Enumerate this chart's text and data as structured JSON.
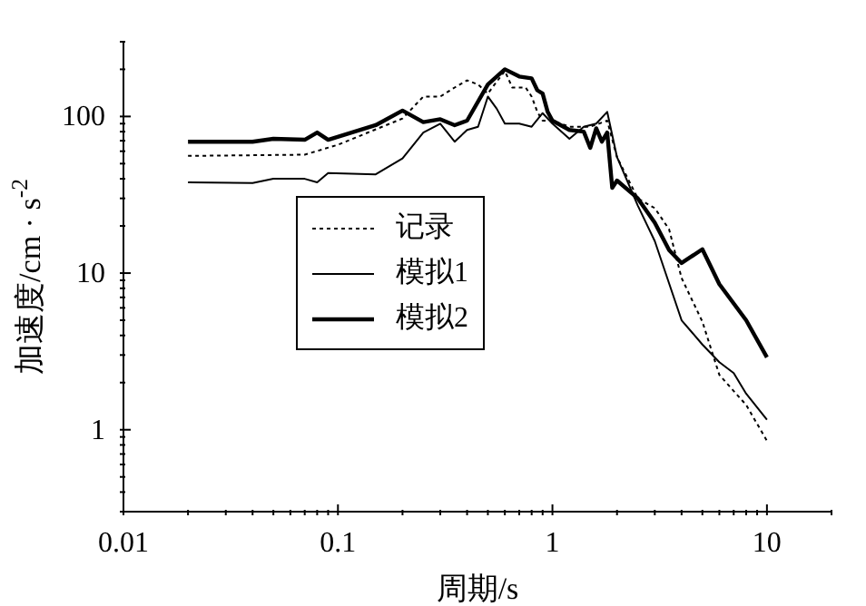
{
  "chart_data": {
    "type": "line",
    "xlabel": "周期/s",
    "ylabel": "加速度/cm · s$^{-2}$",
    "log": "xy",
    "grid": false,
    "legend": "left",
    "marker": "none",
    "xlim": [
      0.01,
      20
    ],
    "ylim": [
      0.3,
      300
    ],
    "xticks": [
      0.01,
      {
        "value": 0.02,
        "label": null
      },
      {
        "value": 0.03,
        "label": null
      },
      {
        "value": 0.04,
        "label": null
      },
      {
        "value": 0.05,
        "label": null
      },
      {
        "value": 0.06,
        "label": null
      },
      {
        "value": 0.07,
        "label": null
      },
      {
        "value": 0.08,
        "label": null
      },
      {
        "value": 0.09,
        "label": null
      },
      0.1,
      {
        "value": 0.2,
        "label": null
      },
      {
        "value": 0.3,
        "label": null
      },
      {
        "value": 0.4,
        "label": null
      },
      {
        "value": 0.5,
        "label": null
      },
      {
        "value": 0.6,
        "label": null
      },
      {
        "value": 0.7,
        "label": null
      },
      {
        "value": 0.8,
        "label": null
      },
      {
        "value": 0.9,
        "label": null
      },
      1,
      {
        "value": 2,
        "label": null
      },
      {
        "value": 3,
        "label": null
      },
      {
        "value": 4,
        "label": null
      },
      {
        "value": 5,
        "label": null
      },
      {
        "value": 6,
        "label": null
      },
      {
        "value": 7,
        "label": null
      },
      {
        "value": 8,
        "label": null
      },
      {
        "value": 9,
        "label": null
      },
      10,
      {
        "value": 20,
        "label": null
      }
    ],
    "yticks": [
      {
        "value": 0.3,
        "label": null
      },
      {
        "value": 0.4,
        "label": null
      },
      {
        "value": 0.5,
        "label": null
      },
      {
        "value": 0.6,
        "label": null
      },
      {
        "value": 0.7,
        "label": null
      },
      {
        "value": 0.8,
        "label": null
      },
      {
        "value": 0.9,
        "label": null
      },
      1,
      {
        "value": 2,
        "label": null
      },
      {
        "value": 3,
        "label": null
      },
      {
        "value": 4,
        "label": null
      },
      {
        "value": 5,
        "label": null
      },
      {
        "value": 6,
        "label": null
      },
      {
        "value": 7,
        "label": null
      },
      {
        "value": 8,
        "label": null
      },
      {
        "value": 9,
        "label": null
      },
      10,
      {
        "value": 20,
        "label": null
      },
      {
        "value": 30,
        "label": null
      },
      {
        "value": 40,
        "label": null
      },
      {
        "value": 50,
        "label": null
      },
      {
        "value": 60,
        "label": null
      },
      {
        "value": 70,
        "label": null
      },
      {
        "value": 80,
        "label": null
      },
      {
        "value": 90,
        "label": null
      },
      100,
      {
        "value": 200,
        "label": null
      },
      {
        "value": 300,
        "label": null
      }
    ],
    "series": [
      {
        "name": "记录",
        "color": "#000000",
        "line_style": "dotted",
        "x": [
          0.02,
          0.07,
          0.1,
          0.2,
          0.25,
          0.3,
          0.35,
          0.4,
          0.45,
          0.5,
          0.55,
          0.6,
          0.65,
          0.75,
          0.8,
          0.85,
          0.9,
          1.0,
          1.2,
          1.5,
          1.8,
          2.0,
          2.5,
          3.0,
          3.5,
          4.0,
          5.0,
          6.0,
          8.0,
          10
        ],
        "values": [
          56,
          57,
          66,
          97,
          134,
          134,
          153,
          170,
          160,
          140,
          167,
          195,
          153,
          153,
          134,
          107,
          94,
          94,
          86,
          86,
          94,
          55,
          30,
          26,
          19,
          9.3,
          4.9,
          2.24,
          1.44,
          0.85
        ]
      },
      {
        "name": "模拟1",
        "color": "#000000",
        "line_style": "solid",
        "x": [
          0.02,
          0.04,
          0.05,
          0.07,
          0.08,
          0.09,
          0.15,
          0.2,
          0.25,
          0.3,
          0.35,
          0.4,
          0.45,
          0.5,
          0.55,
          0.6,
          0.7,
          0.8,
          0.9,
          1.0,
          1.2,
          1.4,
          1.6,
          1.8,
          2.0,
          2.5,
          3.0,
          4.0,
          5.0,
          6.0,
          7.0,
          8.0,
          10
        ],
        "values": [
          38,
          37.6,
          40,
          40,
          38,
          43.5,
          42.7,
          54,
          79,
          90,
          69,
          82,
          86,
          134,
          112,
          90,
          90,
          86,
          105,
          90,
          72,
          86,
          90,
          107,
          55,
          27,
          16,
          5.0,
          3.5,
          2.7,
          2.3,
          1.7,
          1.16
        ]
      },
      {
        "name": "模拟2",
        "color": "#000000",
        "line_style": "solid",
        "x": [
          0.02,
          0.04,
          0.05,
          0.07,
          0.08,
          0.09,
          0.15,
          0.2,
          0.25,
          0.3,
          0.35,
          0.4,
          0.5,
          0.6,
          0.7,
          0.8,
          0.85,
          0.9,
          0.95,
          1.0,
          1.2,
          1.4,
          1.5,
          1.6,
          1.7,
          1.8,
          1.9,
          2.0,
          2.5,
          3.0,
          3.5,
          4.0,
          5.0,
          6.0,
          8.0,
          10
        ],
        "values": [
          69,
          69,
          72,
          71,
          79,
          71,
          88,
          109,
          92,
          96,
          88,
          94,
          160,
          200,
          180,
          175,
          147,
          140,
          107,
          94,
          82,
          80,
          63,
          84,
          69,
          79,
          35,
          39,
          30,
          21,
          14,
          11.6,
          14.2,
          8.5,
          5.0,
          2.9
        ]
      }
    ]
  }
}
